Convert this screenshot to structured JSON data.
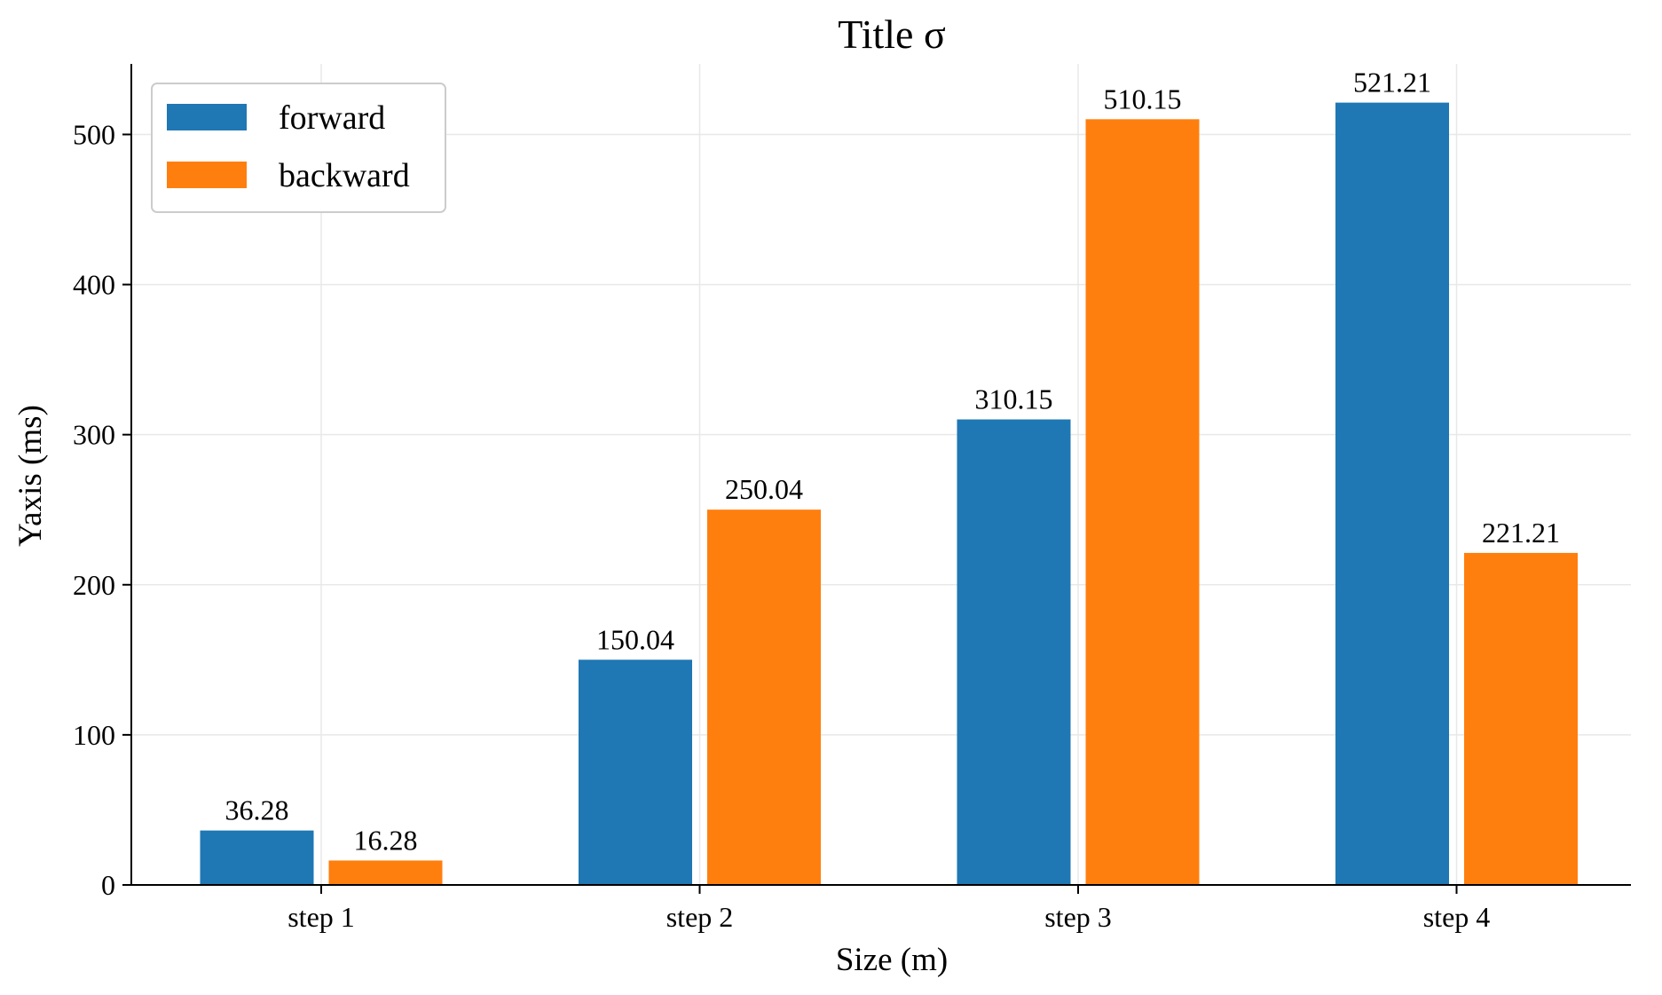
{
  "chart_data": {
    "type": "bar",
    "title": "Title σ",
    "xlabel": "Size (m)",
    "ylabel": "Yaxis (ms)",
    "categories": [
      "step 1",
      "step 2",
      "step 3",
      "step 4"
    ],
    "series": [
      {
        "name": "forward",
        "color": "#1f77b4",
        "values": [
          36.28,
          150.04,
          310.15,
          521.21
        ]
      },
      {
        "name": "backward",
        "color": "#ff7f0e",
        "values": [
          16.28,
          250.04,
          510.15,
          221.21
        ]
      }
    ],
    "ylim": [
      0,
      547
    ],
    "yticks": [
      0,
      100,
      200,
      300,
      400,
      500
    ],
    "grid": true,
    "legend_position": "top-left",
    "data_labels": true
  }
}
